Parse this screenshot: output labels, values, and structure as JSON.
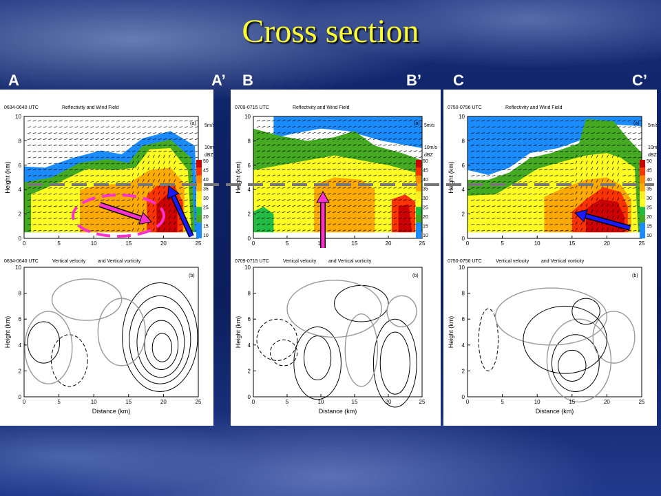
{
  "slide": {
    "title": "Cross section",
    "section_labels": [
      "A",
      "A’",
      "B",
      "B’",
      "C",
      "C’"
    ]
  },
  "colors": {
    "title": "#ffff33",
    "background": "#0e2266",
    "marker_magenta": "#ff33cc",
    "marker_blue": "#1a1aff",
    "dashed_line": "#777777",
    "reflectivity_scale": [
      "#1a8cff",
      "#1a8cff",
      "#44aa22",
      "#22bb44",
      "#ffff22",
      "#ffee22",
      "#ffaa00",
      "#ff8800",
      "#ff3300",
      "#cc0000"
    ]
  },
  "panels": [
    {
      "id": "A",
      "top": {
        "time": "0634-0640 UTC",
        "title": "Reflectivity and Wind Field",
        "tag": "(a)",
        "vector_scale": "5m/s",
        "w_scale": "10m/s",
        "unit": "dBZ",
        "colorbar_ticks": [
          "50",
          "45",
          "40",
          "35",
          "30",
          "25",
          "20",
          "15",
          "10"
        ]
      },
      "bottom": {
        "time": "0634-0640 UTC",
        "title": "Vertical velocity",
        "title2": "and Vertical vorticity",
        "tag": "(b)"
      }
    },
    {
      "id": "B",
      "top": {
        "time": "0709-0715 UTC",
        "title": "Reflectivity and Wind Field",
        "tag": "(a)",
        "vector_scale": "5m/s",
        "w_scale": "10m/s",
        "unit": "dBZ",
        "colorbar_ticks": [
          "50",
          "45",
          "40",
          "35",
          "30",
          "25",
          "20",
          "15",
          "10"
        ]
      },
      "bottom": {
        "time": "0709-0715 UTC",
        "title": "Vertical velocity",
        "title2": "and Vertical vorticity",
        "tag": "(b)"
      }
    },
    {
      "id": "C",
      "top": {
        "time": "0750-0756 UTC",
        "title": "Reflectivity and Wind Field",
        "tag": "(a)",
        "vector_scale": "5m/s",
        "w_scale": "10m/s",
        "unit": "dBZ",
        "colorbar_ticks": [
          "50",
          "45",
          "40",
          "35",
          "30",
          "25",
          "20",
          "15",
          "10"
        ]
      },
      "bottom": {
        "time": "0750-0756 UTC",
        "title": "Vertical velocity",
        "title2": "and Vertical vorticity",
        "tag": "(b)"
      }
    }
  ],
  "chart_data": {
    "type": "heatmap",
    "title": "Cross section",
    "xlabel": "Distance (km)",
    "ylabel": "Height (km)",
    "xlim": [
      0,
      25
    ],
    "ylim": [
      0,
      10
    ],
    "x_ticks": [
      0,
      5,
      10,
      15,
      20,
      25
    ],
    "y_ticks": [
      0,
      2,
      4,
      6,
      8,
      10
    ],
    "colorbar": {
      "unit": "dBZ",
      "ticks": [
        50,
        45,
        40,
        35,
        30,
        25,
        20,
        15,
        10
      ]
    },
    "panels": [
      {
        "cross_section": "A-A’",
        "cores": [
          {
            "x": 20,
            "y": 2.8,
            "dbz": 45
          },
          {
            "x": 14,
            "y": 3.5,
            "dbz": 35
          }
        ]
      },
      {
        "cross_section": "B-B’",
        "cores": [
          {
            "x": 22,
            "y": 2.5,
            "dbz": 45
          },
          {
            "x": 13,
            "y": 3.0,
            "dbz": 35
          }
        ]
      },
      {
        "cross_section": "C-C’",
        "cores": [
          {
            "x": 20,
            "y": 3.0,
            "dbz": 45
          }
        ]
      }
    ]
  }
}
